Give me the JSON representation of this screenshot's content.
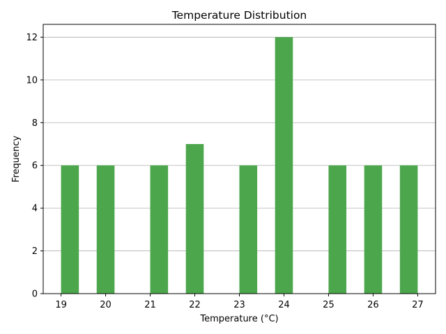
{
  "chart_data": {
    "type": "bar",
    "title": "Temperature Distribution",
    "xlabel": "Temperature (°C)",
    "ylabel": "Frequency",
    "bins": [
      {
        "x0": 19.0,
        "x1": 19.4,
        "count": 6
      },
      {
        "x0": 19.8,
        "x1": 20.2,
        "count": 6
      },
      {
        "x0": 21.0,
        "x1": 21.4,
        "count": 6
      },
      {
        "x0": 21.8,
        "x1": 22.2,
        "count": 7
      },
      {
        "x0": 23.0,
        "x1": 23.4,
        "count": 6
      },
      {
        "x0": 23.8,
        "x1": 24.2,
        "count": 12
      },
      {
        "x0": 25.0,
        "x1": 25.4,
        "count": 6
      },
      {
        "x0": 25.8,
        "x1": 26.2,
        "count": 6
      },
      {
        "x0": 26.6,
        "x1": 27.0,
        "count": 6
      }
    ],
    "xticks": [
      "19",
      "20",
      "21",
      "22",
      "23",
      "24",
      "25",
      "26",
      "27"
    ],
    "yticks": [
      "0",
      "2",
      "4",
      "6",
      "8",
      "10",
      "12"
    ],
    "xlim": [
      18.6,
      27.4
    ],
    "ylim": [
      0,
      12.6
    ],
    "grid": "y-major",
    "colors": {
      "bar": "#4ca64c",
      "grid": "#b0b0b0",
      "axis": "#000000"
    }
  }
}
